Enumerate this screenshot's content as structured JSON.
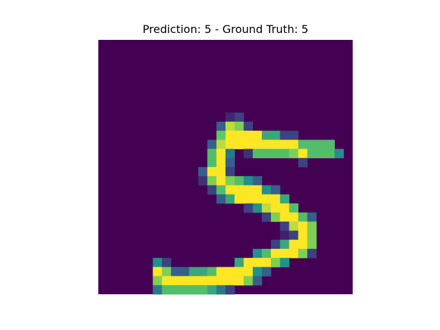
{
  "chart_data": {
    "type": "heatmap",
    "title": "Prediction: 5 - Ground Truth: 5",
    "prediction": 5,
    "ground_truth": 5,
    "colormap": "viridis",
    "axes_visible": false,
    "xlabel": "",
    "ylabel": "",
    "value_range": [
      0,
      1
    ],
    "image": [
      [
        0,
        0,
        0,
        0,
        0,
        0,
        0,
        0,
        0,
        0,
        0,
        0,
        0,
        0,
        0,
        0,
        0,
        0,
        0,
        0,
        0,
        0,
        0,
        0,
        0,
        0,
        0,
        0
      ],
      [
        0,
        0,
        0,
        0,
        0,
        0,
        0,
        0,
        0,
        0,
        0,
        0,
        0,
        0,
        0,
        0,
        0,
        0,
        0,
        0,
        0,
        0,
        0,
        0,
        0,
        0,
        0,
        0
      ],
      [
        0,
        0,
        0,
        0,
        0,
        0,
        0,
        0,
        0,
        0,
        0,
        0,
        0,
        0,
        0,
        0,
        0,
        0,
        0,
        0,
        0,
        0,
        0,
        0,
        0,
        0,
        0,
        0
      ],
      [
        0,
        0,
        0,
        0,
        0,
        0,
        0,
        0,
        0,
        0,
        0,
        0,
        0,
        0,
        0,
        0,
        0,
        0,
        0,
        0,
        0,
        0,
        0,
        0,
        0,
        0,
        0,
        0
      ],
      [
        0,
        0,
        0,
        0,
        0,
        0,
        0,
        0,
        0,
        0,
        0,
        0,
        0,
        0,
        0,
        0,
        0,
        0,
        0,
        0,
        0,
        0,
        0,
        0,
        0,
        0,
        0,
        0
      ],
      [
        0,
        0,
        0,
        0,
        0,
        0,
        0,
        0,
        0,
        0,
        0,
        0,
        0,
        0,
        0,
        0,
        0,
        0,
        0,
        0,
        0,
        0,
        0,
        0,
        0,
        0,
        0,
        0
      ],
      [
        0,
        0,
        0,
        0,
        0,
        0,
        0,
        0,
        0,
        0,
        0,
        0,
        0,
        0,
        0,
        0,
        0,
        0,
        0,
        0,
        0,
        0,
        0,
        0,
        0,
        0,
        0,
        0
      ],
      [
        0,
        0,
        0,
        0,
        0,
        0,
        0,
        0,
        0,
        0,
        0,
        0,
        0,
        0,
        0,
        0,
        0,
        0,
        0,
        0,
        0,
        0,
        0,
        0,
        0,
        0,
        0,
        0
      ],
      [
        0,
        0,
        0,
        0,
        0,
        0,
        0,
        0,
        0,
        0,
        0,
        0,
        0,
        0,
        0.12,
        0.2,
        0,
        0,
        0,
        0,
        0,
        0,
        0,
        0,
        0,
        0,
        0,
        0
      ],
      [
        0,
        0,
        0,
        0,
        0,
        0,
        0,
        0,
        0,
        0,
        0,
        0,
        0,
        0.3,
        0.9,
        0.8,
        0.2,
        0,
        0,
        0,
        0,
        0,
        0,
        0,
        0,
        0,
        0,
        0
      ],
      [
        0,
        0,
        0,
        0,
        0,
        0,
        0,
        0,
        0,
        0,
        0,
        0,
        0,
        0.75,
        1,
        1,
        1,
        1,
        0.6,
        0.6,
        0.2,
        0.2,
        0,
        0,
        0,
        0,
        0,
        0
      ],
      [
        0,
        0,
        0,
        0,
        0,
        0,
        0,
        0,
        0,
        0,
        0,
        0,
        0.3,
        0.9,
        1,
        1,
        1,
        1,
        1,
        1,
        1,
        1,
        0.7,
        0.7,
        0.7,
        0.7,
        0,
        0
      ],
      [
        0,
        0,
        0,
        0,
        0,
        0,
        0,
        0,
        0,
        0,
        0,
        0,
        0.7,
        1,
        0.4,
        0,
        0.15,
        0.7,
        0.7,
        0.7,
        0.7,
        0.8,
        1,
        0.7,
        0.7,
        0.7,
        0.5,
        0
      ],
      [
        0,
        0,
        0,
        0,
        0,
        0,
        0,
        0,
        0,
        0,
        0,
        0,
        0.7,
        1,
        0.3,
        0,
        0,
        0,
        0,
        0,
        0,
        0,
        0.2,
        0,
        0,
        0,
        0,
        0
      ],
      [
        0,
        0,
        0,
        0,
        0,
        0,
        0,
        0,
        0,
        0,
        0,
        0.3,
        1,
        1,
        0.2,
        0,
        0,
        0,
        0,
        0,
        0,
        0,
        0,
        0,
        0,
        0,
        0,
        0
      ],
      [
        0,
        0,
        0,
        0,
        0,
        0,
        0,
        0,
        0,
        0,
        0,
        0.15,
        0.8,
        1,
        0.8,
        0.7,
        0.5,
        0.3,
        0,
        0,
        0,
        0,
        0,
        0,
        0,
        0,
        0,
        0
      ],
      [
        0,
        0,
        0,
        0,
        0,
        0,
        0,
        0,
        0,
        0,
        0,
        0,
        0.2,
        0.7,
        1,
        1,
        1,
        1,
        0.5,
        0.3,
        0,
        0,
        0,
        0,
        0,
        0,
        0,
        0
      ],
      [
        0,
        0,
        0,
        0,
        0,
        0,
        0,
        0,
        0,
        0,
        0,
        0,
        0,
        0.3,
        0.6,
        1,
        1,
        1,
        1,
        1,
        0.6,
        0,
        0,
        0,
        0,
        0,
        0,
        0,
        0
      ],
      [
        0,
        0,
        0,
        0,
        0,
        0,
        0,
        0,
        0,
        0,
        0,
        0,
        0,
        0,
        0,
        0,
        0.2,
        0.5,
        0.9,
        1,
        1,
        0.7,
        0,
        0,
        0,
        0,
        0,
        0
      ],
      [
        0,
        0,
        0,
        0,
        0,
        0,
        0,
        0,
        0,
        0,
        0,
        0,
        0,
        0,
        0,
        0,
        0,
        0,
        0.2,
        0.8,
        1,
        1,
        0.7,
        0.3,
        0,
        0,
        0,
        0
      ],
      [
        0,
        0,
        0,
        0,
        0,
        0,
        0,
        0,
        0,
        0,
        0,
        0,
        0,
        0,
        0,
        0,
        0,
        0,
        0,
        0,
        0.2,
        0.9,
        1,
        0.8,
        0,
        0,
        0,
        0
      ],
      [
        0,
        0,
        0,
        0,
        0,
        0,
        0,
        0,
        0,
        0,
        0,
        0,
        0,
        0,
        0,
        0,
        0,
        0,
        0,
        0,
        0.1,
        0.2,
        1,
        0.8,
        0,
        0,
        0,
        0
      ],
      [
        0,
        0,
        0,
        0,
        0,
        0,
        0,
        0,
        0,
        0,
        0,
        0,
        0,
        0,
        0,
        0,
        0,
        0,
        0,
        0.2,
        0.6,
        1,
        1,
        0.8,
        0,
        0,
        0,
        0
      ],
      [
        0,
        0,
        0,
        0,
        0,
        0,
        0,
        0,
        0,
        0,
        0,
        0,
        0,
        0,
        0,
        0,
        0,
        0.5,
        0.7,
        1,
        1,
        1,
        0.8,
        0.2,
        0,
        0,
        0,
        0
      ],
      [
        0,
        0,
        0,
        0,
        0,
        0,
        0.5,
        0.2,
        0,
        0,
        0,
        0,
        0,
        0,
        0,
        0.6,
        1,
        1,
        1,
        0.8,
        0.5,
        0,
        0,
        0,
        0,
        0,
        0,
        0
      ],
      [
        0,
        0,
        0,
        0,
        0,
        0,
        1,
        0.8,
        0.3,
        0.3,
        0.6,
        0.6,
        0.7,
        1,
        1,
        1,
        1,
        0.5,
        0.3,
        0,
        0,
        0,
        0,
        0,
        0,
        0,
        0,
        0
      ],
      [
        0,
        0,
        0,
        0,
        0,
        0,
        0.8,
        1,
        1,
        1,
        1,
        1,
        1,
        1,
        1,
        1,
        0.8,
        0.3,
        0,
        0,
        0,
        0,
        0,
        0,
        0,
        0,
        0,
        0
      ],
      [
        0,
        0,
        0,
        0,
        0,
        0,
        0.4,
        0.7,
        0.7,
        0.7,
        0.7,
        0.7,
        0.6,
        0.4,
        0.2,
        0,
        0,
        0,
        0,
        0,
        0,
        0,
        0,
        0,
        0,
        0,
        0,
        0
      ]
    ]
  }
}
